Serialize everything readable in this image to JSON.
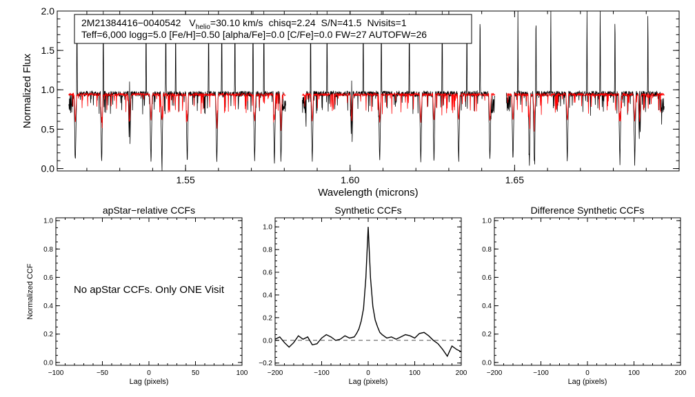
{
  "chart_data": [
    {
      "type": "line",
      "name": "spectrum",
      "xlabel": "Wavelength (microns)",
      "ylabel": "Normalized Flux",
      "xlim": [
        1.511,
        1.7
      ],
      "ylim": [
        -0.03,
        2.0
      ],
      "xticks": [
        1.55,
        1.6,
        1.65
      ],
      "xtick_labels": [
        "1.55",
        "1.60",
        "1.65"
      ],
      "yticks": [
        0.0,
        0.5,
        1.0,
        1.5,
        2.0
      ],
      "ytick_labels": [
        "0.0",
        "0.5",
        "1.0",
        "1.5",
        "2.0"
      ],
      "chips": [
        [
          1.5145,
          1.5805
        ],
        [
          1.5855,
          1.644
        ],
        [
          1.6475,
          1.6955
        ]
      ],
      "series": [
        {
          "name": "observed",
          "color": "#000000",
          "continuum": 0.95,
          "noise": 0.035
        },
        {
          "name": "model",
          "color": "#ff0000",
          "continuum": 0.94,
          "noise": 0.018
        }
      ],
      "absorption_lines": [
        1.5165,
        1.5245,
        1.533,
        1.5395,
        1.5428,
        1.5505,
        1.5595,
        1.571,
        1.577,
        1.579,
        1.5885,
        1.6005,
        1.609,
        1.6215,
        1.6255,
        1.633,
        1.6425,
        1.6495,
        1.6545,
        1.656,
        1.666,
        1.682,
        1.6865,
        1.688
      ],
      "emission_spikes": [
        1.517,
        1.525,
        1.533,
        1.538,
        1.544,
        1.547,
        1.557,
        1.561,
        1.565,
        1.5705,
        1.5738,
        1.588,
        1.593,
        1.6005,
        1.604,
        1.6095,
        1.618,
        1.628,
        1.6355,
        1.6395,
        1.651,
        1.6565,
        1.661,
        1.672,
        1.676,
        1.6805,
        1.688,
        1.6905
      ]
    },
    {
      "type": "line",
      "name": "apstar-relative-ccf",
      "title": "apStar−relative CCFs",
      "xlabel": "Lag (pixels)",
      "ylabel": "Normalized CCF",
      "xlim": [
        -100,
        100
      ],
      "ylim": [
        -0.02,
        1.02
      ],
      "xticks": [
        -100,
        -50,
        0,
        50,
        100
      ],
      "xtick_labels": [
        "−100",
        "−50",
        "0",
        "50",
        "100"
      ],
      "yticks": [
        0.0,
        0.2,
        0.4,
        0.6,
        0.8,
        1.0
      ],
      "ytick_labels": [
        "0.0",
        "0.2",
        "0.4",
        "0.6",
        "0.8",
        "1.0"
      ],
      "annotation": "No apStar CCFs.  Only ONE Visit",
      "series": []
    },
    {
      "type": "line",
      "name": "synthetic-ccf",
      "title": "Synthetic CCFs",
      "xlabel": "Lag (pixels)",
      "xlim": [
        -200,
        200
      ],
      "ylim": [
        -0.22,
        1.08
      ],
      "xticks": [
        -200,
        -100,
        0,
        100,
        200
      ],
      "xtick_labels": [
        "−200",
        "−100",
        "0",
        "100",
        "200"
      ],
      "yticks": [
        -0.2,
        0.0,
        0.2,
        0.4,
        0.6,
        0.8,
        1.0
      ],
      "ytick_labels": [
        "−0.2",
        "0.0",
        "0.2",
        "0.4",
        "0.6",
        "0.8",
        "1.0"
      ],
      "zero_line": {
        "y": 0,
        "style": "dashed"
      },
      "series": [
        {
          "name": "ccf",
          "color": "#000000",
          "x": [
            -200,
            -190,
            -180,
            -170,
            -160,
            -150,
            -140,
            -130,
            -120,
            -110,
            -100,
            -90,
            -80,
            -70,
            -60,
            -50,
            -40,
            -30,
            -25,
            -20,
            -15,
            -10,
            -5,
            0,
            5,
            10,
            15,
            20,
            25,
            30,
            40,
            50,
            60,
            70,
            80,
            90,
            100,
            110,
            120,
            130,
            140,
            150,
            160,
            170,
            180,
            190,
            200
          ],
          "y": [
            0.01,
            0.03,
            -0.02,
            -0.06,
            -0.02,
            0.04,
            0.01,
            0.03,
            -0.04,
            -0.03,
            0.02,
            0.05,
            0.03,
            0.0,
            0.01,
            0.04,
            0.02,
            0.03,
            0.06,
            0.1,
            0.17,
            0.28,
            0.55,
            1.0,
            0.55,
            0.3,
            0.18,
            0.12,
            0.07,
            0.05,
            0.02,
            0.03,
            0.01,
            0.03,
            0.05,
            0.04,
            0.02,
            0.06,
            0.07,
            0.04,
            0.0,
            -0.03,
            -0.08,
            -0.14,
            -0.05,
            -0.08,
            -0.1
          ]
        }
      ]
    },
    {
      "type": "line",
      "name": "difference-synthetic-ccf",
      "title": "Difference Synthetic CCFs",
      "xlabel": "Lag (pixels)",
      "xlim": [
        -200,
        200
      ],
      "ylim": [
        -0.02,
        1.02
      ],
      "xticks": [
        -200,
        -100,
        0,
        100,
        200
      ],
      "xtick_labels": [
        "−200",
        "−100",
        "0",
        "100",
        "200"
      ],
      "yticks": [
        0.0,
        0.2,
        0.4,
        0.6,
        0.8,
        1.0
      ],
      "ytick_labels": [
        "0.0",
        "0.2",
        "0.4",
        "0.6",
        "0.8",
        "1.0"
      ],
      "series": []
    }
  ],
  "infobox": {
    "star_id": "2M21384416−0040542",
    "vhelio_v": "V",
    "vhelio_sub": "helio",
    "vhelio_value": "=30.10 km/s",
    "chisq": "chisq=2.24",
    "snr": "S/N=41.5",
    "nvisits": "Nvisits=1",
    "params_line": "Teff=6,000 logg=5.0 [Fe/H]=0.50 [alpha/Fe]=0.0 [C/Fe]=0.0 FW=27 AUTOFW=26"
  }
}
